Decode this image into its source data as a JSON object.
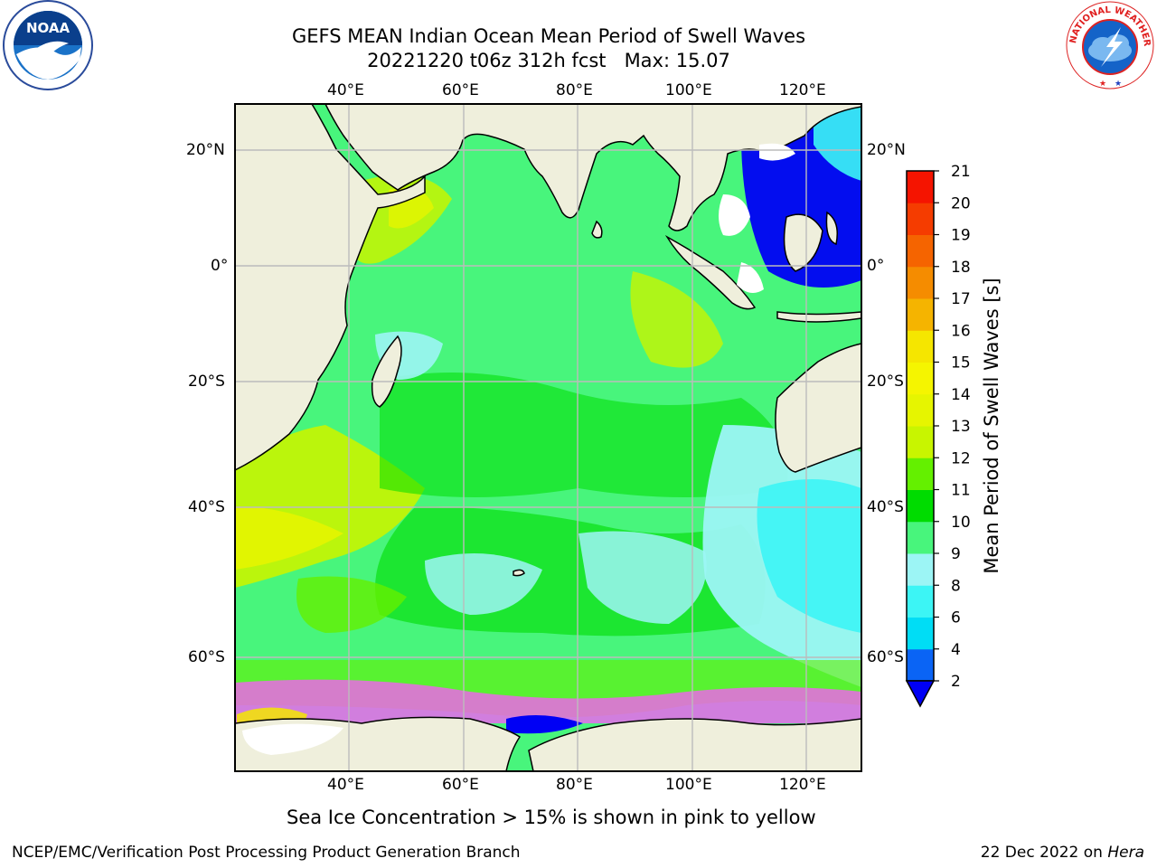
{
  "header": {
    "title_line1": "GEFS MEAN Indian Ocean Mean Period of Swell Waves",
    "title_line2": "20221220 t06z 312h fcst   Max: 15.07"
  },
  "map": {
    "lon_labels": [
      "40°E",
      "60°E",
      "80°E",
      "100°E",
      "120°E"
    ],
    "lat_labels": [
      "20°N",
      "0°",
      "20°S",
      "40°S",
      "60°S"
    ],
    "note": "Sea Ice Concentration > 15% is shown in pink to yellow"
  },
  "colorbar": {
    "label": "Mean Period of Swell Waves [s]",
    "ticks": [
      "2",
      "4",
      "6",
      "8",
      "9",
      "10",
      "11",
      "12",
      "13",
      "14",
      "15",
      "16",
      "17",
      "18",
      "19",
      "20",
      "21"
    ],
    "colors": [
      "#0a64f5",
      "#00ddf5",
      "#3cf5f5",
      "#9cf5f5",
      "#48f57c",
      "#00dc00",
      "#64f000",
      "#c8f500",
      "#e6f500",
      "#f5f500",
      "#f5e600",
      "#f5b400",
      "#f58c00",
      "#f56400",
      "#f53c00",
      "#f51400"
    ],
    "under_color": "#0000f5"
  },
  "footer": {
    "left": "NCEP/EMC/Verification Post Processing Product Generation Branch",
    "date": "22 Dec 2022 on ",
    "machine": "Hera"
  },
  "logos": {
    "noaa": "NOAA",
    "nws": "NATIONAL WEATHER SERVICE"
  },
  "colors": {
    "land": "#efefdc",
    "grid": "#bcbcbc",
    "seaice": "#ff55ff"
  }
}
